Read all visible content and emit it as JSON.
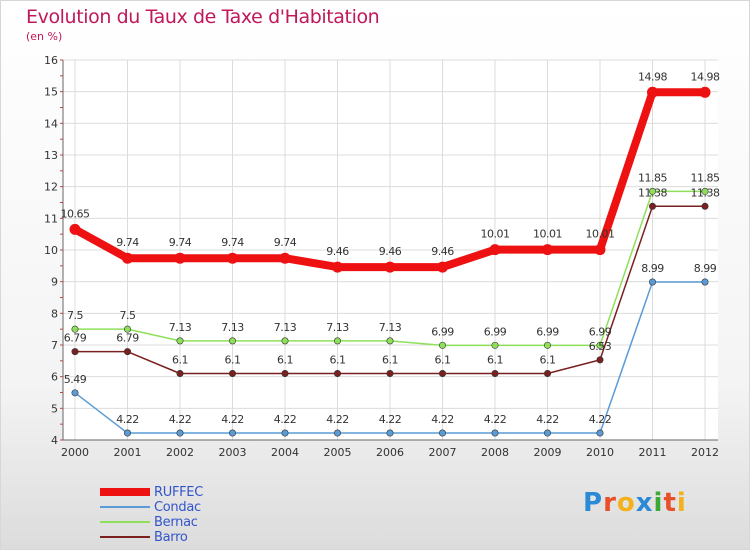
{
  "header": {
    "title": "Evolution du Taux de Taxe d'Habitation",
    "subtitle": "(en %)"
  },
  "logo": {
    "text": "Proxiti",
    "letter_colors": [
      "#2b8ad6",
      "#e8502a",
      "#f3b21c",
      "#2b8ad6",
      "#3aaa35",
      "#e8502a",
      "#f3b21c"
    ]
  },
  "chart_data": {
    "type": "line",
    "title": "Evolution du Taux de Taxe d'Habitation",
    "subtitle": "(en %)",
    "x": [
      "2000",
      "2001",
      "2002",
      "2003",
      "2004",
      "2005",
      "2006",
      "2007",
      "2008",
      "2009",
      "2010",
      "2011",
      "2012"
    ],
    "ylim": [
      4,
      16
    ],
    "yticks": [
      4,
      5,
      6,
      7,
      8,
      9,
      10,
      11,
      12,
      13,
      14,
      15,
      16
    ],
    "grid": true,
    "legend_position": "bottom-left",
    "series": [
      {
        "name": "RUFFEC",
        "color": "#ee1111",
        "values": [
          10.65,
          9.74,
          9.74,
          9.74,
          9.74,
          9.46,
          9.46,
          9.46,
          10.01,
          10.01,
          10.01,
          14.98,
          14.98
        ],
        "labels": [
          "10.65",
          "9.74",
          "9.74",
          "9.74",
          "9.74",
          "9.46",
          "9.46",
          "9.46",
          "10.01",
          "10.01",
          "10.01",
          "14.98",
          "14.98"
        ]
      },
      {
        "name": "Condac",
        "color": "#5b9bd5",
        "values": [
          5.49,
          4.22,
          4.22,
          4.22,
          4.22,
          4.22,
          4.22,
          4.22,
          4.22,
          4.22,
          4.22,
          8.99,
          8.99
        ],
        "labels": [
          "5.49",
          "4.22",
          "4.22",
          "4.22",
          "4.22",
          "4.22",
          "4.22",
          "4.22",
          "4.22",
          "4.22",
          "4.22",
          "8.99",
          "8.99"
        ]
      },
      {
        "name": "Bernac",
        "color": "#8ee05a",
        "values": [
          7.5,
          7.5,
          7.13,
          7.13,
          7.13,
          7.13,
          7.13,
          6.99,
          6.99,
          6.99,
          6.99,
          11.85,
          11.85
        ],
        "labels": [
          "7.5",
          "7.5",
          "7.13",
          "7.13",
          "7.13",
          "7.13",
          "7.13",
          "6.99",
          "6.99",
          "6.99",
          "6.99",
          "11.85",
          "11.85"
        ]
      },
      {
        "name": "Barro",
        "color": "#7a2020",
        "values": [
          6.79,
          6.79,
          6.1,
          6.1,
          6.1,
          6.1,
          6.1,
          6.1,
          6.1,
          6.1,
          6.53,
          11.38,
          11.38
        ],
        "labels": [
          "6.79",
          "6.79",
          "6.1",
          "6.1",
          "6.1",
          "6.1",
          "6.1",
          "6.1",
          "6.1",
          "6.1",
          "6.53",
          "11.38",
          "11.38"
        ]
      }
    ]
  }
}
